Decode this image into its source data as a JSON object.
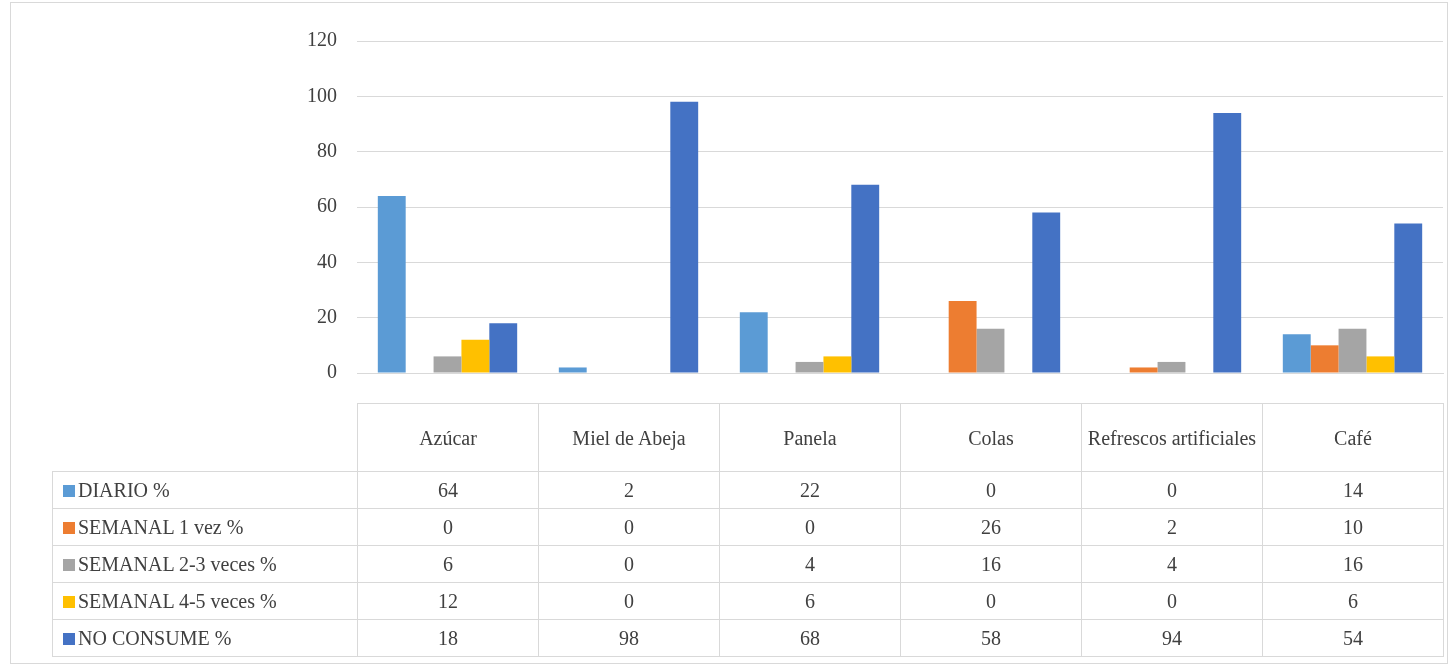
{
  "chart_data": {
    "type": "bar",
    "categories": [
      "Azúcar",
      "Miel de Abeja",
      "Panela",
      "Colas",
      "Refrescos artificiales",
      "Café"
    ],
    "series": [
      {
        "name": "DIARIO %",
        "color": "#5b9bd5",
        "values": [
          64,
          2,
          22,
          0,
          0,
          14
        ]
      },
      {
        "name": "SEMANAL 1 vez %",
        "color": "#ed7d31",
        "values": [
          0,
          0,
          0,
          26,
          2,
          10
        ]
      },
      {
        "name": "SEMANAL 2-3 veces %",
        "color": "#a5a5a5",
        "values": [
          6,
          0,
          4,
          16,
          4,
          16
        ]
      },
      {
        "name": "SEMANAL 4-5 veces %",
        "color": "#ffc000",
        "values": [
          12,
          0,
          6,
          0,
          0,
          6
        ]
      },
      {
        "name": "NO CONSUME %",
        "color": "#4472c4",
        "values": [
          18,
          98,
          68,
          58,
          94,
          54
        ]
      }
    ],
    "ylim": [
      0,
      120
    ],
    "yticks": [
      0,
      20,
      40,
      60,
      80,
      100,
      120
    ],
    "grid": "y",
    "legend": "bottom",
    "data_labels": true
  }
}
